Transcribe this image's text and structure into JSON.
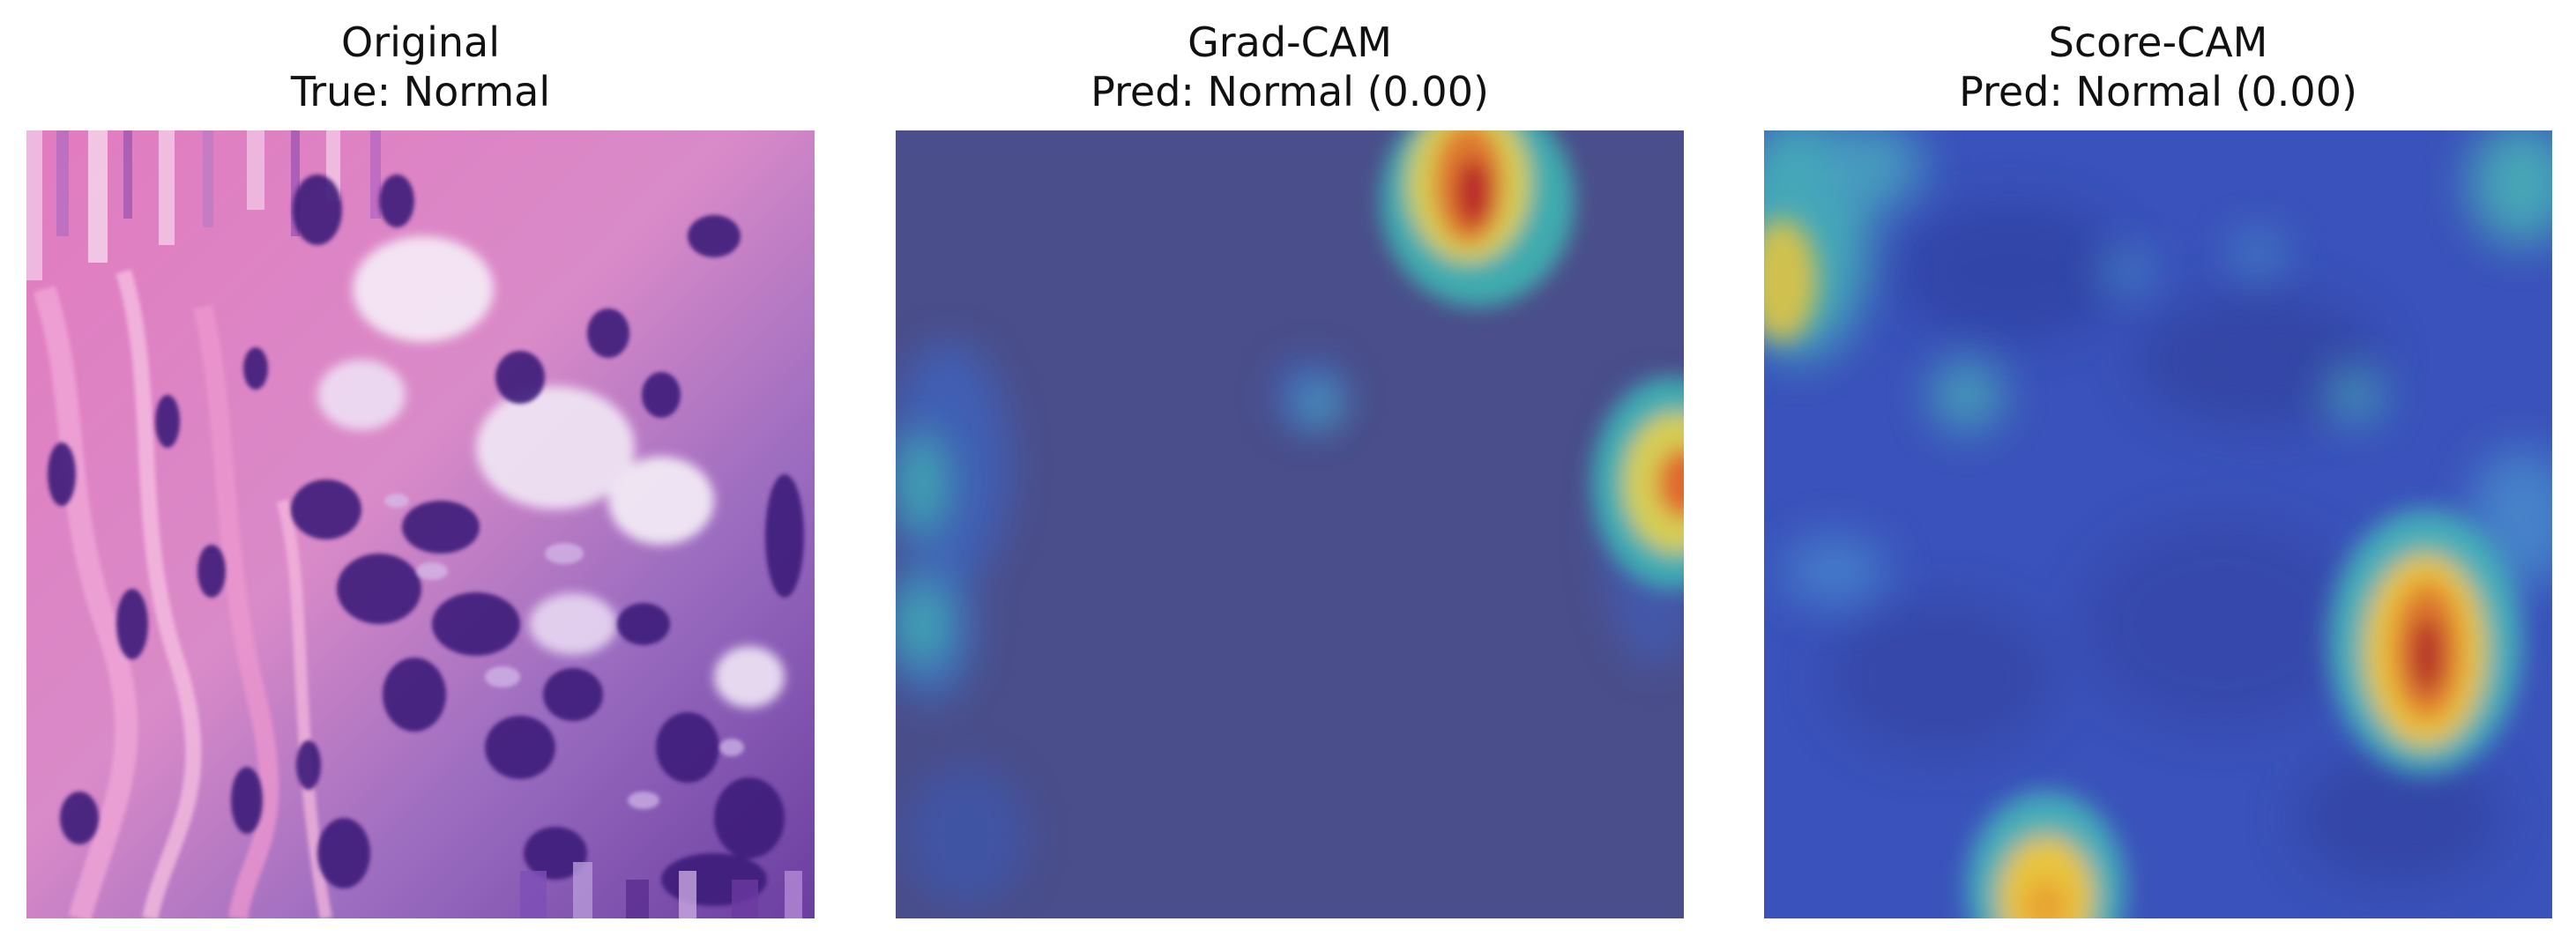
{
  "panels": [
    {
      "title": "Original",
      "subtitle": "True: Normal",
      "image": "H&E stained histology tissue patch",
      "colors": {
        "pink": "#e77fc2",
        "purple": "#5a2d91",
        "dark_purple": "#3a1a6e",
        "white": "#f4ecf7"
      }
    },
    {
      "title": "Grad-CAM",
      "subtitle": "Pred: Normal (0.00)",
      "image": "Grad-CAM heatmap overlay",
      "colors": {
        "background": "#4a4e8a",
        "hot": "#c0282c",
        "warm": "#f0c43a",
        "cool": "#3fb6b2"
      }
    },
    {
      "title": "Score-CAM",
      "subtitle": "Pred: Normal (0.00)",
      "image": "Score-CAM heatmap overlay",
      "colors": {
        "background": "#3a52bb",
        "hot": "#b8262a",
        "warm": "#e9c53c",
        "cool": "#47b8b8"
      }
    }
  ]
}
